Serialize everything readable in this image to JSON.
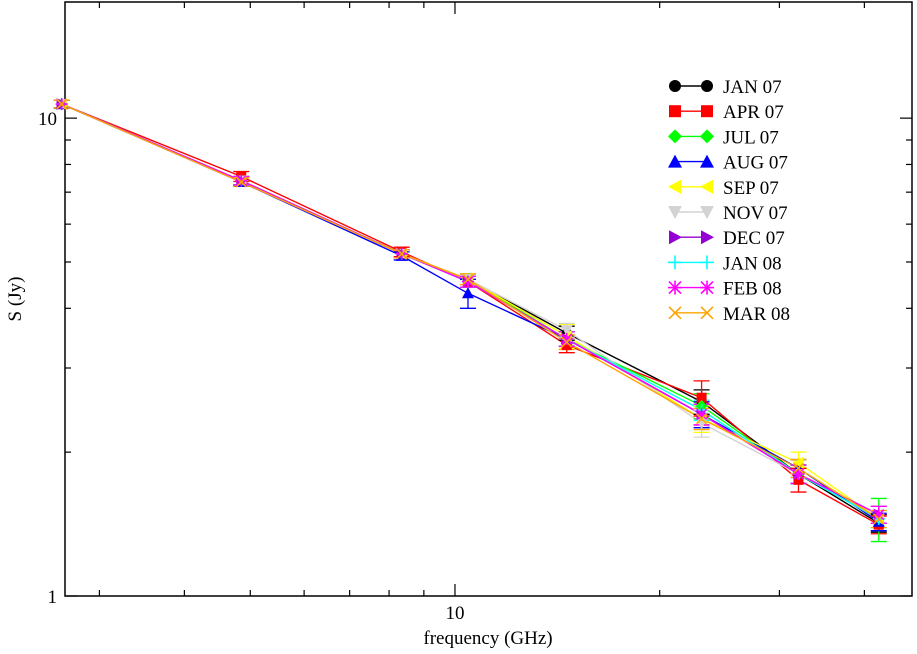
{
  "chart_data": {
    "type": "line",
    "title": "",
    "xlabel": "frequency (GHz)",
    "ylabel": "S (Jy)",
    "xscale": "log",
    "yscale": "log",
    "xlim": [
      2.67,
      47
    ],
    "ylim": [
      1,
      17.5
    ],
    "x_ticks": [
      {
        "value": 10,
        "label": "10"
      }
    ],
    "y_ticks": [
      {
        "value": 1,
        "label": "1"
      },
      {
        "value": 10,
        "label": "10"
      }
    ],
    "grid": false,
    "legend_position": "top-right",
    "x": [
      4.85,
      8.35,
      10.45,
      14.6,
      23.05,
      32.0,
      42.0
    ],
    "series": [
      {
        "name": "JAN 07",
        "color": "#000000",
        "marker": "circle",
        "values": [
          7.4,
          5.2,
          4.6,
          3.55,
          2.55,
          1.8,
          1.42
        ],
        "errors": [
          0.15,
          0.1,
          0.12,
          0.12,
          0.15,
          0.08,
          0.06
        ]
      },
      {
        "name": "APR 07",
        "color": "#ff0000",
        "marker": "square",
        "values": [
          7.55,
          5.25,
          4.55,
          3.35,
          2.6,
          1.75,
          1.41
        ],
        "errors": [
          0.18,
          0.12,
          0.12,
          0.12,
          0.22,
          0.1,
          0.06
        ]
      },
      {
        "name": "JUL 07",
        "color": "#00ff00",
        "marker": "diamond",
        "values": [
          7.4,
          5.2,
          4.6,
          3.45,
          2.5,
          1.8,
          1.45
        ],
        "errors": [
          0.15,
          0.1,
          0.12,
          0.12,
          0.15,
          0.08,
          0.15
        ]
      },
      {
        "name": "AUG 07",
        "color": "#0000ff",
        "marker": "triangle-up",
        "values": [
          7.35,
          5.15,
          4.3,
          3.45,
          2.4,
          1.85,
          1.43
        ],
        "errors": [
          0.15,
          0.1,
          0.3,
          0.12,
          0.15,
          0.08,
          0.06
        ]
      },
      {
        "name": "SEP 07",
        "color": "#ffff00",
        "marker": "triangle-left",
        "values": [
          7.4,
          5.2,
          4.6,
          3.5,
          2.35,
          1.9,
          1.45
        ],
        "errors": [
          0.15,
          0.1,
          0.12,
          0.2,
          0.15,
          0.1,
          0.06
        ]
      },
      {
        "name": "NOV 07",
        "color": "#d3d3d3",
        "marker": "triangle-down",
        "values": [
          7.4,
          5.2,
          4.6,
          3.6,
          2.3,
          1.8,
          1.45
        ],
        "errors": [
          0.15,
          0.1,
          0.12,
          0.12,
          0.15,
          0.08,
          0.06
        ]
      },
      {
        "name": "DEC 07",
        "color": "#9400d3",
        "marker": "triangle-right",
        "values": [
          7.4,
          5.2,
          4.55,
          3.45,
          2.4,
          1.8,
          1.48
        ],
        "errors": [
          0.15,
          0.1,
          0.12,
          0.12,
          0.12,
          0.08,
          0.06
        ]
      },
      {
        "name": "JAN 08",
        "color": "#00ffff",
        "marker": "plus",
        "values": [
          7.4,
          5.2,
          4.55,
          3.45,
          2.45,
          1.8,
          1.45
        ],
        "errors": [
          0.15,
          0.1,
          0.12,
          0.12,
          0.12,
          0.08,
          0.06
        ]
      },
      {
        "name": "FEB 08",
        "color": "#ff00ff",
        "marker": "asterisk",
        "values": [
          7.4,
          5.2,
          4.55,
          3.45,
          2.4,
          1.8,
          1.48
        ],
        "errors": [
          0.15,
          0.1,
          0.12,
          0.12,
          0.12,
          0.08,
          0.06
        ]
      },
      {
        "name": "MAR 08",
        "color": "#ffa500",
        "marker": "cross",
        "values": [
          7.35,
          5.2,
          4.6,
          3.4,
          2.35,
          1.85,
          1.45
        ],
        "errors": [
          0.15,
          0.1,
          0.12,
          0.12,
          0.12,
          0.08,
          0.06
        ]
      }
    ],
    "first_point": {
      "x": 2.64,
      "value": 10.7,
      "error": 0.2
    }
  }
}
